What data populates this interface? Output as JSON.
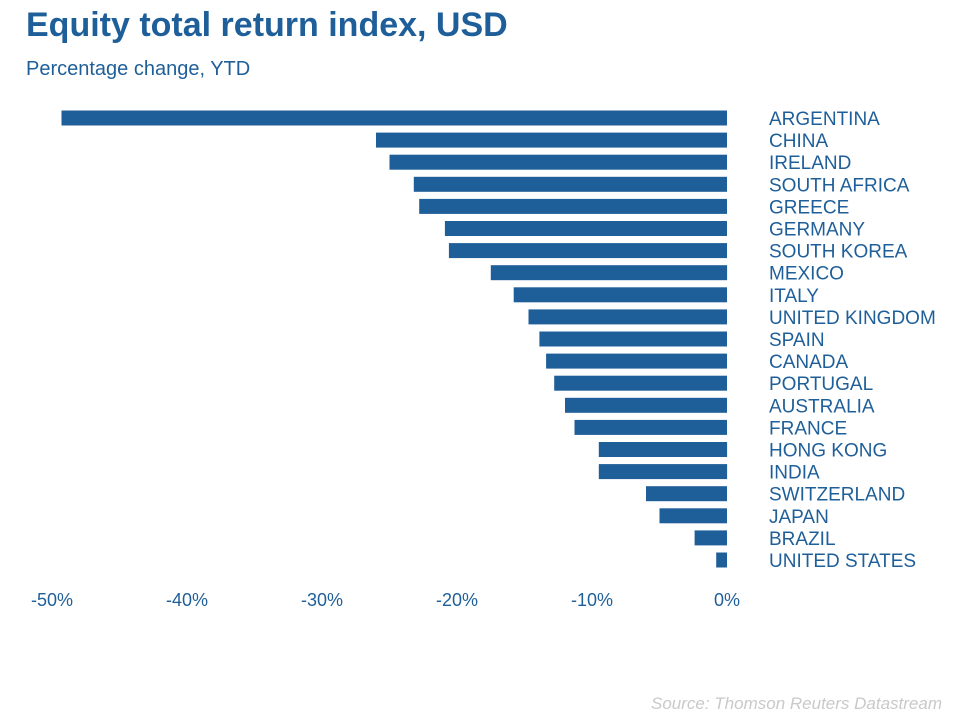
{
  "chart_data": {
    "type": "bar",
    "orientation": "horizontal",
    "title": "Equity total return index, USD",
    "subtitle": "Percentage change, YTD",
    "source": "Source: Thomson Reuters Datastream",
    "bar_color": "#1f5f99",
    "text_color": "#1f5f99",
    "categories": [
      "ARGENTINA",
      "CHINA",
      "IRELAND",
      "SOUTH AFRICA",
      "GREECE",
      "GERMANY",
      "SOUTH KOREA",
      "MEXICO",
      "ITALY",
      "UNITED KINGDOM",
      "SPAIN",
      "CANADA",
      "PORTUGAL",
      "AUSTRALIA",
      "FRANCE",
      "HONG KONG",
      "INDIA",
      "SWITZERLAND",
      "JAPAN",
      "BRAZIL",
      "UNITED STATES"
    ],
    "values": [
      -49.3,
      -26.0,
      -25.0,
      -23.2,
      -22.8,
      -20.9,
      -20.6,
      -17.5,
      -15.8,
      -14.7,
      -13.9,
      -13.4,
      -12.8,
      -12.0,
      -11.3,
      -9.5,
      -9.5,
      -6.0,
      -5.0,
      -2.4,
      -0.8
    ],
    "xticks": [
      {
        "value": -50,
        "label": "-50%"
      },
      {
        "value": -40,
        "label": "-40%"
      },
      {
        "value": -30,
        "label": "-30%"
      },
      {
        "value": -20,
        "label": "-20%"
      },
      {
        "value": -10,
        "label": "-10%"
      },
      {
        "value": 0,
        "label": "0%"
      }
    ],
    "xlim": [
      -50,
      0
    ],
    "grid": false,
    "legend": "none"
  }
}
